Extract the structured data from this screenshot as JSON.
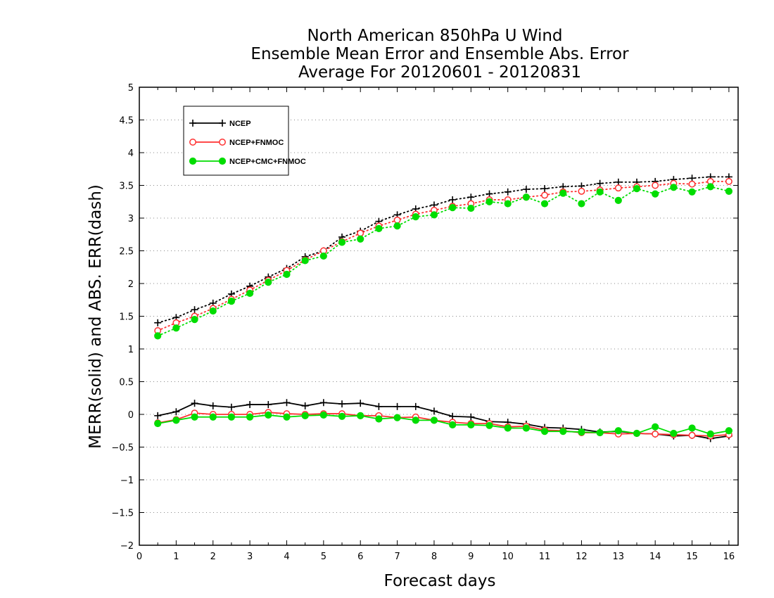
{
  "chart_data": {
    "type": "line",
    "title": [
      "North American 850hPa U Wind",
      "Ensemble Mean Error and Ensemble Abs. Error",
      "Average For 20120601 - 20120831"
    ],
    "xlabel": "Forecast days",
    "ylabel": "MERR(solid) and ABS. ERR(dash)",
    "xlim": [
      0,
      16.25
    ],
    "ylim": [
      -2,
      5
    ],
    "xticks": [
      0,
      1,
      2,
      3,
      4,
      5,
      6,
      7,
      8,
      9,
      10,
      11,
      12,
      13,
      14,
      15,
      16
    ],
    "yticks": [
      -2,
      -1.5,
      -1,
      -0.5,
      0,
      0.5,
      1,
      1.5,
      2,
      2.5,
      3,
      3.5,
      4,
      4.5,
      5
    ],
    "ytick_labels": [
      "−2",
      "−1.5",
      "−1",
      "−0.5",
      "0",
      "0.5",
      "1",
      "1.5",
      "2",
      "2.5",
      "3",
      "3.5",
      "4",
      "4.5",
      "5"
    ],
    "grid": "horizontal dotted",
    "legend_position": "top-left",
    "x": [
      0.5,
      1,
      1.5,
      2,
      2.5,
      3,
      3.5,
      4,
      4.5,
      5,
      5.5,
      6,
      6.5,
      7,
      7.5,
      8,
      8.5,
      9,
      9.5,
      10,
      10.5,
      11,
      11.5,
      12,
      12.5,
      13,
      13.5,
      14,
      14.5,
      15,
      15.5,
      16
    ],
    "series": [
      {
        "name": "NCEP",
        "color": "#000000",
        "marker": "plus",
        "merr": [
          -0.02,
          0.04,
          0.17,
          0.13,
          0.11,
          0.15,
          0.15,
          0.18,
          0.13,
          0.18,
          0.16,
          0.17,
          0.12,
          0.12,
          0.12,
          0.05,
          -0.03,
          -0.04,
          -0.11,
          -0.12,
          -0.15,
          -0.2,
          -0.21,
          -0.23,
          -0.27,
          -0.26,
          -0.29,
          -0.3,
          -0.33,
          -0.32,
          -0.37,
          -0.33
        ],
        "abs_err": [
          1.4,
          1.48,
          1.6,
          1.7,
          1.84,
          1.96,
          2.1,
          2.23,
          2.41,
          2.5,
          2.71,
          2.8,
          2.95,
          3.05,
          3.14,
          3.2,
          3.28,
          3.32,
          3.37,
          3.4,
          3.44,
          3.45,
          3.48,
          3.49,
          3.53,
          3.55,
          3.55,
          3.56,
          3.59,
          3.61,
          3.63,
          3.63
        ]
      },
      {
        "name": "NCEP+FNMOC",
        "color": "#ff3030",
        "marker": "open-circle",
        "merr": [
          -0.13,
          -0.08,
          0.02,
          0.0,
          0.0,
          0.0,
          0.03,
          0.01,
          0.0,
          0.01,
          0.01,
          -0.02,
          -0.02,
          -0.05,
          -0.04,
          -0.09,
          -0.12,
          -0.14,
          -0.14,
          -0.19,
          -0.18,
          -0.24,
          -0.25,
          -0.28,
          -0.28,
          -0.3,
          -0.29,
          -0.3,
          -0.31,
          -0.32,
          -0.33,
          -0.31
        ],
        "abs_err": [
          1.28,
          1.4,
          1.5,
          1.62,
          1.76,
          1.9,
          2.05,
          2.2,
          2.36,
          2.5,
          2.64,
          2.77,
          2.88,
          2.97,
          3.06,
          3.12,
          3.18,
          3.22,
          3.28,
          3.28,
          3.32,
          3.35,
          3.4,
          3.41,
          3.43,
          3.46,
          3.48,
          3.5,
          3.53,
          3.52,
          3.56,
          3.56
        ]
      },
      {
        "name": "NCEP+CMC+FNMOC",
        "color": "#00dd00",
        "marker": "filled-circle",
        "merr": [
          -0.14,
          -0.09,
          -0.04,
          -0.04,
          -0.04,
          -0.04,
          -0.01,
          -0.04,
          -0.02,
          -0.01,
          -0.03,
          -0.02,
          -0.07,
          -0.05,
          -0.09,
          -0.09,
          -0.16,
          -0.16,
          -0.17,
          -0.21,
          -0.21,
          -0.26,
          -0.26,
          -0.27,
          -0.28,
          -0.25,
          -0.29,
          -0.19,
          -0.29,
          -0.21,
          -0.3,
          -0.25
        ],
        "abs_err": [
          1.2,
          1.32,
          1.45,
          1.58,
          1.73,
          1.85,
          2.02,
          2.14,
          2.35,
          2.42,
          2.63,
          2.68,
          2.84,
          2.88,
          3.02,
          3.05,
          3.16,
          3.15,
          3.25,
          3.22,
          3.32,
          3.22,
          3.38,
          3.22,
          3.4,
          3.27,
          3.45,
          3.37,
          3.47,
          3.4,
          3.48,
          3.41
        ]
      }
    ]
  }
}
